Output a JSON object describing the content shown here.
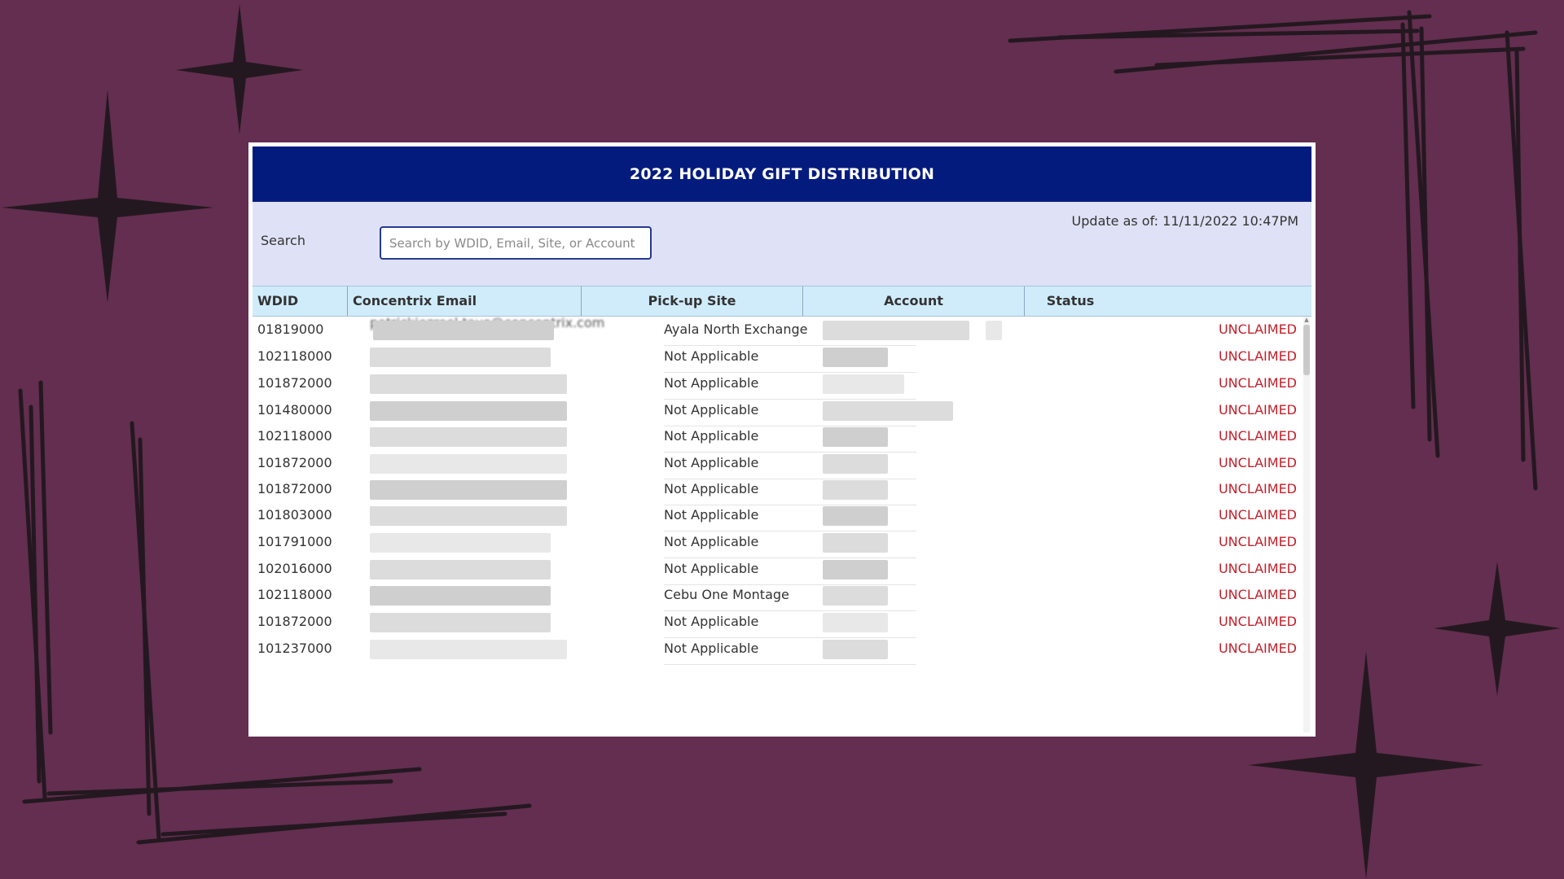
{
  "app": {
    "title": "2022 HOLIDAY GIFT DISTRIBUTION"
  },
  "search": {
    "label": "Search",
    "placeholder": "Search by WDID, Email, Site, or Account",
    "value": ""
  },
  "update": {
    "text": "Update as of: 11/11/2022 10:47PM"
  },
  "table": {
    "columns": [
      "WDID",
      "Concentrix Email",
      "Pick-up Site",
      "Account",
      "Status"
    ],
    "rows": [
      {
        "wdid": "01819000",
        "email": "patrickjezreel.tayo@concentrix.com",
        "site": "Ayala North Exchange",
        "status": "UNCLAIMED"
      },
      {
        "wdid": "102118000",
        "email": "",
        "site": "Not Applicable",
        "status": "UNCLAIMED"
      },
      {
        "wdid": "101872000",
        "email": "",
        "site": "Not Applicable",
        "status": "UNCLAIMED"
      },
      {
        "wdid": "101480000",
        "email": "",
        "site": "Not Applicable",
        "status": "UNCLAIMED"
      },
      {
        "wdid": "102118000",
        "email": "",
        "site": "Not Applicable",
        "status": "UNCLAIMED"
      },
      {
        "wdid": "101872000",
        "email": "",
        "site": "Not Applicable",
        "status": "UNCLAIMED"
      },
      {
        "wdid": "101872000",
        "email": "",
        "site": "Not Applicable",
        "status": "UNCLAIMED"
      },
      {
        "wdid": "101803000",
        "email": "",
        "site": "Not Applicable",
        "status": "UNCLAIMED"
      },
      {
        "wdid": "101791000",
        "email": "",
        "site": "Not Applicable",
        "status": "UNCLAIMED"
      },
      {
        "wdid": "102016000",
        "email": "",
        "site": "Not Applicable",
        "status": "UNCLAIMED"
      },
      {
        "wdid": "102118000",
        "email": "",
        "site": "Cebu One Montage",
        "status": "UNCLAIMED"
      },
      {
        "wdid": "101872000",
        "email": "",
        "site": "Not Applicable",
        "status": "UNCLAIMED"
      },
      {
        "wdid": "101237000",
        "email": "",
        "site": "Not Applicable",
        "status": "UNCLAIMED"
      }
    ]
  },
  "colors": {
    "background": "#632e4f",
    "title_bar": "#041b7e",
    "search_panel": "#dfe2f6",
    "header": "#d0ecfb",
    "status_unclaimed": "#c2202a",
    "decor": "#241820"
  }
}
